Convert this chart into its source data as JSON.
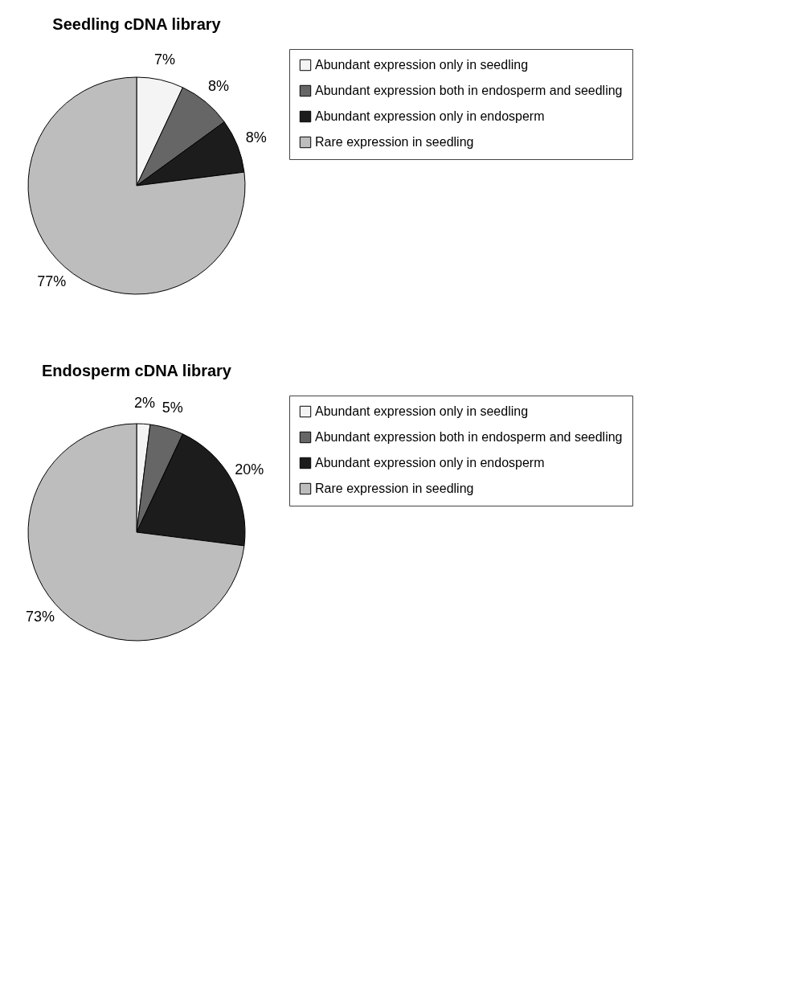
{
  "chart_data": [
    {
      "type": "pie",
      "title": "Seedling cDNA library",
      "categories": [
        "Abundant expression only in seedling",
        "Abundant expression both in endosperm and seedling",
        "Abundant expression only in endosperm",
        "Rare expression in seedling"
      ],
      "values": [
        7,
        8,
        8,
        77
      ],
      "colors": [
        "#f4f4f4",
        "#666666",
        "#1c1c1c",
        "#bdbdbd"
      ],
      "value_labels": [
        "7%",
        "8%",
        "8%",
        "77%"
      ],
      "legend": "right"
    },
    {
      "type": "pie",
      "title": "Endosperm cDNA library",
      "categories": [
        "Abundant expression only in seedling",
        "Abundant expression both in endosperm and seedling",
        "Abundant expression only in endosperm",
        "Rare expression in seedling"
      ],
      "values": [
        2,
        5,
        20,
        73
      ],
      "colors": [
        "#f4f4f4",
        "#666666",
        "#1c1c1c",
        "#bdbdbd"
      ],
      "value_labels": [
        "2%",
        "5%",
        "20%",
        "73%"
      ],
      "legend": "right"
    }
  ]
}
